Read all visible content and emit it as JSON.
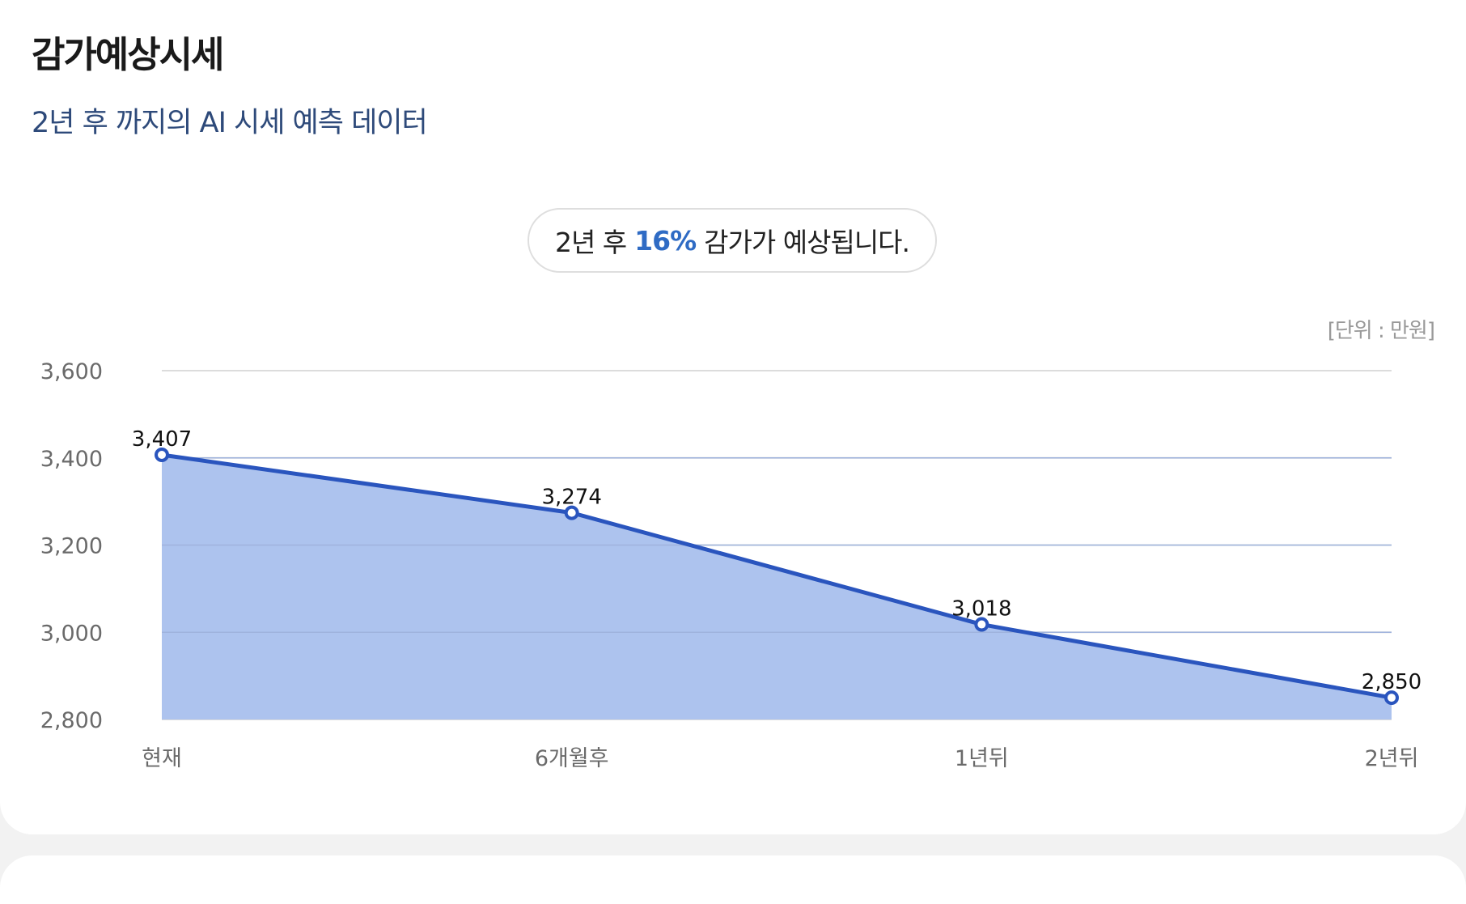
{
  "header": {
    "title": "감가예상시세",
    "subtitle": "2년 후 까지의 AI 시세 예측 데이터"
  },
  "summary": {
    "prefix": "2년 후",
    "percent": "16%",
    "suffix": "감가가 예상됩니다."
  },
  "unit_label": "[단위 : 만원]",
  "colors": {
    "line": "#2a55be",
    "area": "#adc3ee",
    "accent": "#2f6bc4",
    "grid": "#dcdcdc"
  },
  "chart_data": {
    "type": "area",
    "categories": [
      "현재",
      "6개월후",
      "1년뒤",
      "2년뒤"
    ],
    "values": [
      3407,
      3274,
      3018,
      2850
    ],
    "value_labels": [
      "3,407",
      "3,274",
      "3,018",
      "2,850"
    ],
    "ylim": [
      2800,
      3600
    ],
    "y_ticks": [
      2800,
      3000,
      3200,
      3400,
      3600
    ],
    "y_tick_labels": [
      "2,800",
      "3,000",
      "3,200",
      "3,400",
      "3,600"
    ],
    "grid": true,
    "legend": "none"
  }
}
